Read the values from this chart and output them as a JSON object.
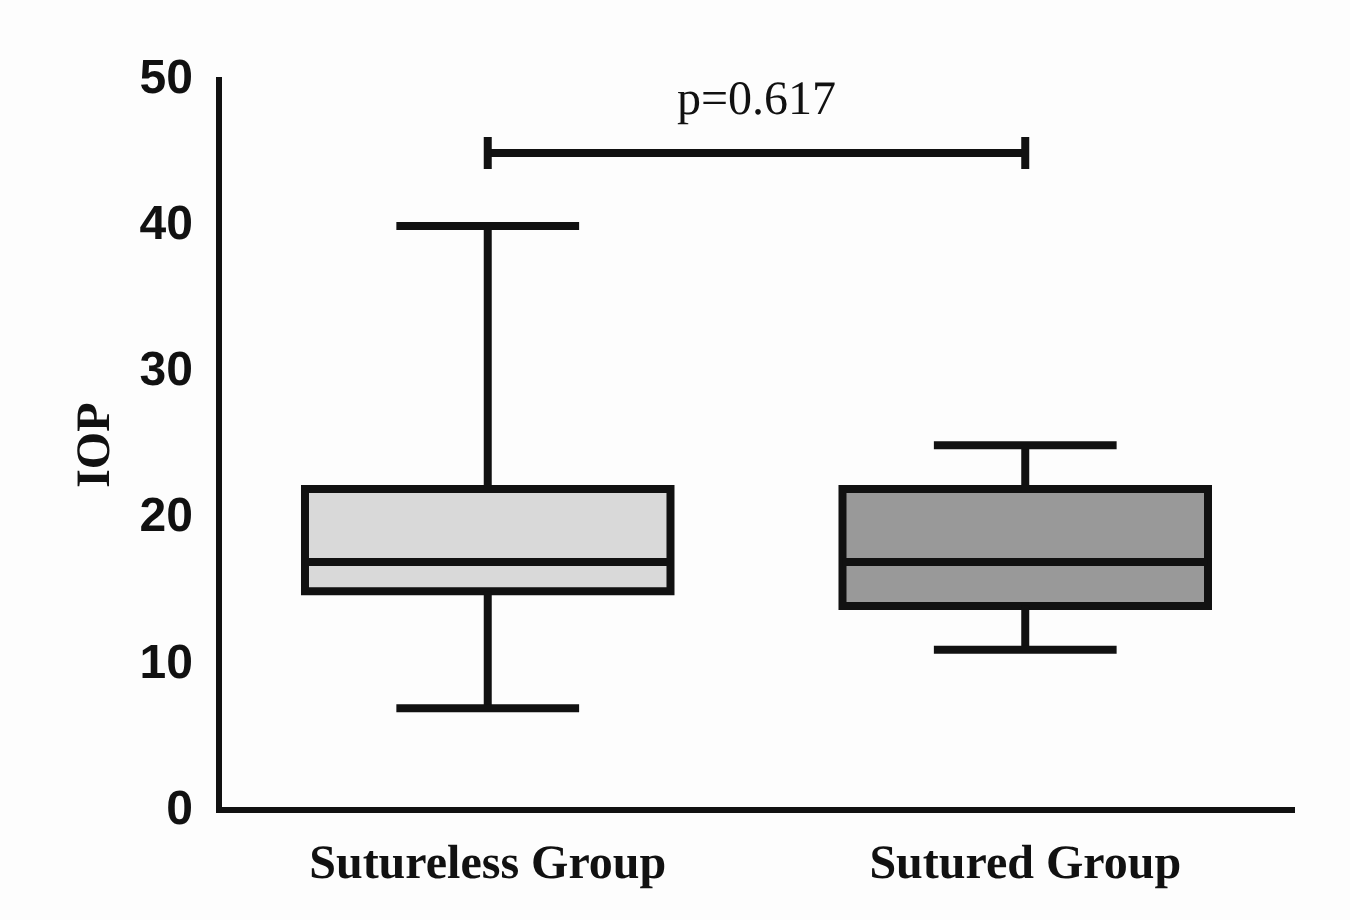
{
  "chart_data": {
    "type": "box",
    "ylabel": "IOP",
    "categories": [
      "Sutureless Group",
      "Sutured Group"
    ],
    "boxes": [
      {
        "low": 7,
        "q1": 15,
        "median": 17,
        "q3": 22,
        "high": 40
      },
      {
        "low": 11,
        "q1": 14,
        "median": 17,
        "q3": 22,
        "high": 25
      }
    ],
    "colors": [
      "#d9d9d9",
      "#999999"
    ],
    "ylim": [
      0,
      50
    ],
    "yticks": [
      0,
      10,
      20,
      30,
      40,
      50
    ],
    "grid": false,
    "legend": false,
    "annotations": [
      "p=0.617"
    ]
  }
}
